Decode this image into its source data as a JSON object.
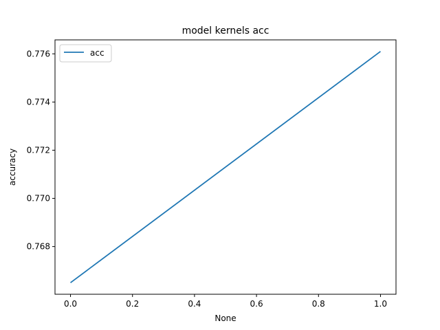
{
  "chart_data": {
    "type": "line",
    "title": "model kernels acc",
    "xlabel": "None",
    "ylabel": "accuracy",
    "x": [
      0,
      1
    ],
    "series": [
      {
        "name": "acc",
        "values": [
          0.7665,
          0.7761
        ],
        "color": "#1f77b4"
      }
    ],
    "xlim": [
      -0.05,
      1.05
    ],
    "ylim": [
      0.76602,
      0.77658
    ],
    "xticks": [
      0.0,
      0.2,
      0.4,
      0.6,
      0.8,
      1.0
    ],
    "xtick_labels": [
      "0.0",
      "0.2",
      "0.4",
      "0.6",
      "0.8",
      "1.0"
    ],
    "yticks": [
      0.768,
      0.77,
      0.772,
      0.774,
      0.776
    ],
    "ytick_labels": [
      "0.768",
      "0.770",
      "0.772",
      "0.774",
      "0.776"
    ],
    "grid": false,
    "legend_position": "upper left"
  }
}
